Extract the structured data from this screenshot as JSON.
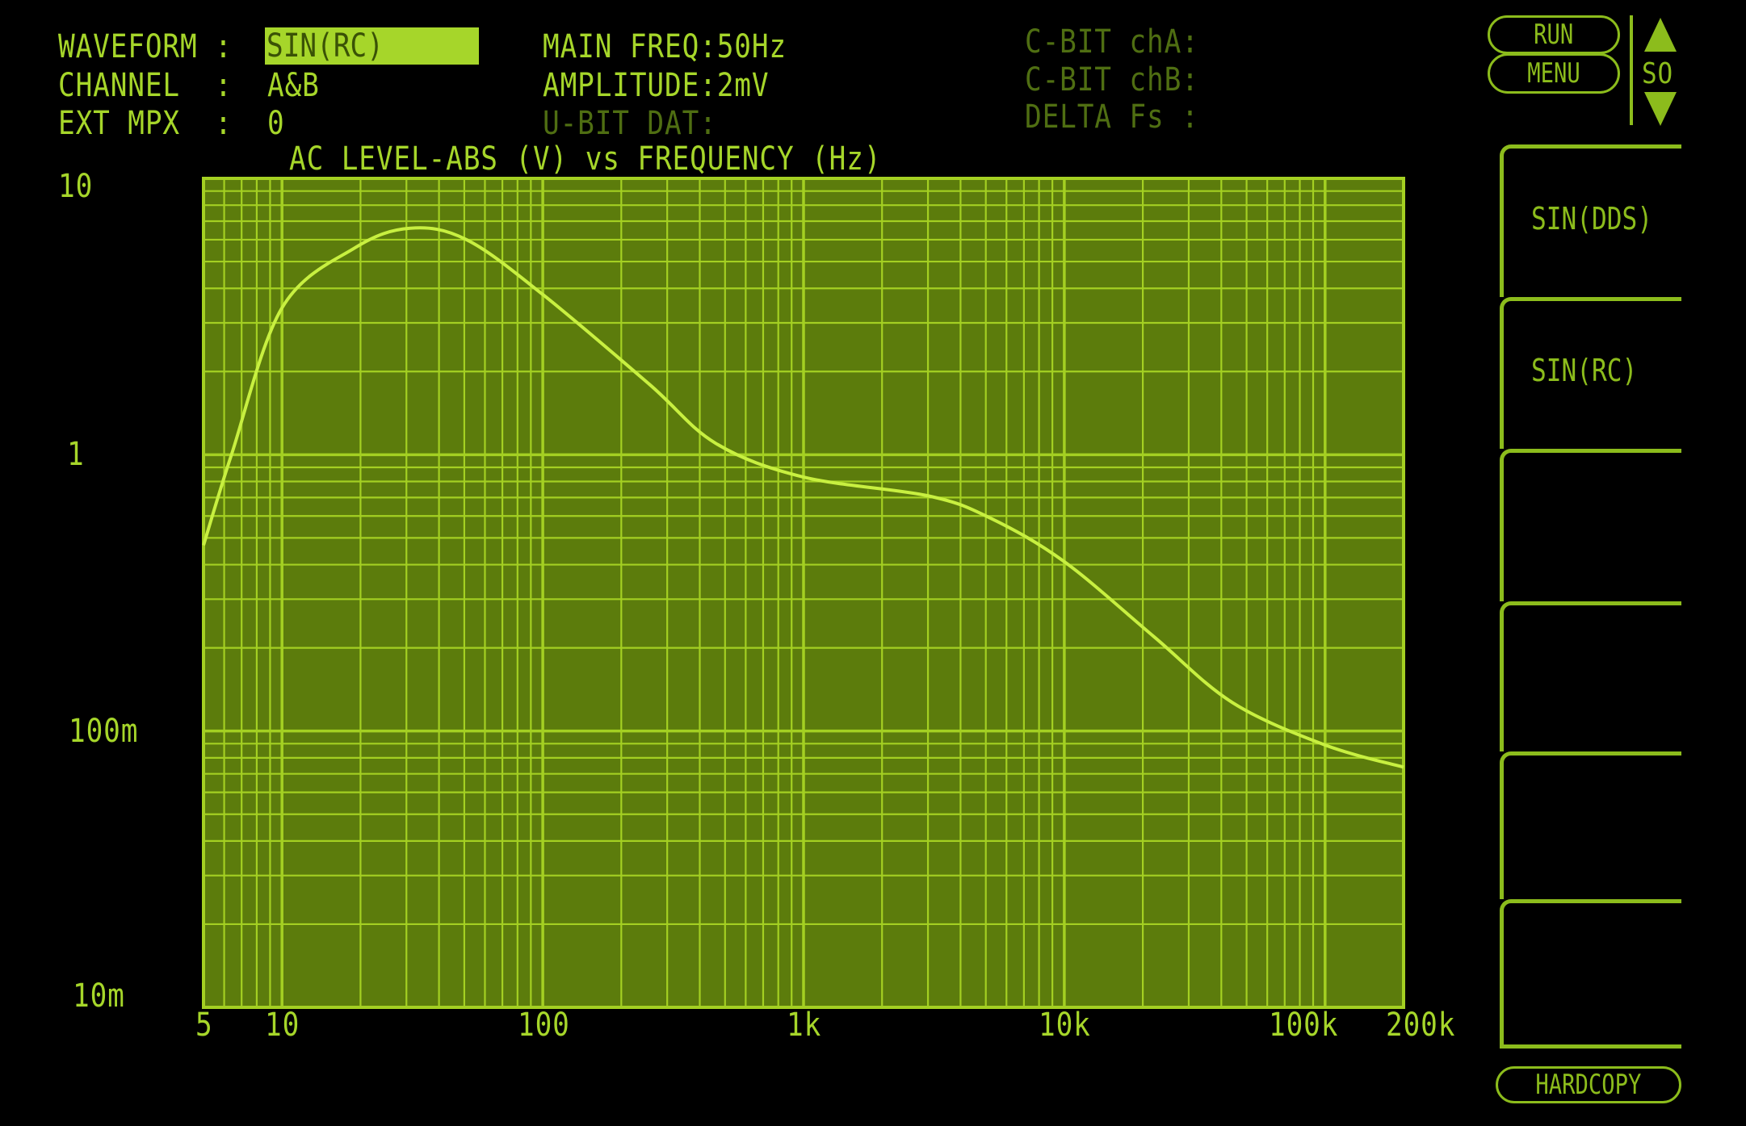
{
  "header": {
    "waveform_label": "WAVEFORM :",
    "waveform_value": "SIN(RC)",
    "channel_label": "CHANNEL  :",
    "channel_value": "A&B",
    "ext_mpx_label": "EXT MPX  :",
    "ext_mpx_value": "0",
    "main_freq": "MAIN FREQ:50Hz",
    "amplitude": "AMPLITUDE:2mV",
    "u_bit_dat": "U-BIT DAT:",
    "c_bit_cha": "C-BIT chA:",
    "c_bit_chb": "C-BIT chB:",
    "delta_fs": "DELTA Fs :"
  },
  "controls": {
    "run_label": "RUN",
    "menu_label": "MENU",
    "scroll_label": "SO",
    "hardcopy_label": "HARDCOPY"
  },
  "softkeys": [
    {
      "label": "SIN(DDS)"
    },
    {
      "label": "SIN(RC)"
    },
    {
      "label": ""
    },
    {
      "label": ""
    },
    {
      "label": ""
    },
    {
      "label": ""
    }
  ],
  "colors": {
    "trace": "#c8f040",
    "grid": "#a4d022",
    "plot_bg": "#5c7c0c",
    "text": "#a6d62a"
  },
  "chart_data": {
    "type": "line",
    "title": "AC LEVEL-ABS (V) vs FREQUENCY (Hz)",
    "xscale": "log",
    "yscale": "log",
    "xlim": [
      5,
      200000
    ],
    "ylim": [
      0.01,
      10
    ],
    "grid": true,
    "x_ticks": [
      {
        "value": 5,
        "label": "5"
      },
      {
        "value": 10,
        "label": "10"
      },
      {
        "value": 100,
        "label": "100"
      },
      {
        "value": 1000,
        "label": "1k"
      },
      {
        "value": 10000,
        "label": "10k"
      },
      {
        "value": 100000,
        "label": "100k"
      },
      {
        "value": 200000,
        "label": "200k"
      }
    ],
    "y_ticks": [
      {
        "value": 10,
        "label": "10"
      },
      {
        "value": 1,
        "label": "1"
      },
      {
        "value": 0.1,
        "label": "100m"
      },
      {
        "value": 0.01,
        "label": "10m"
      }
    ],
    "series": [
      {
        "x": [
          5,
          6.4,
          10,
          19,
          31,
          51,
          100,
          256,
          460,
          1000,
          3000,
          5200,
          10000,
          22000,
          44000,
          100000,
          200000
        ],
        "y": [
          0.47,
          1.0,
          3.4,
          5.6,
          6.6,
          6.0,
          3.8,
          1.8,
          1.1,
          0.83,
          0.71,
          0.59,
          0.41,
          0.22,
          0.127,
          0.089,
          0.074
        ]
      }
    ]
  }
}
